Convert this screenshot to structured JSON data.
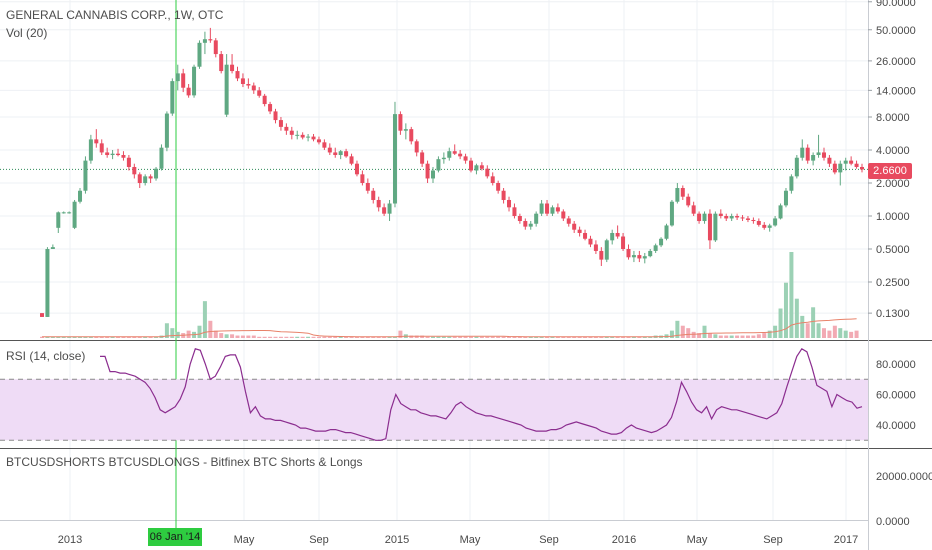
{
  "header": {
    "symbol_title": "GENERAL CANNABIS CORP., 1W, OTC",
    "volume_label": "Vol (20)",
    "rsi_label": "RSI (14, close)",
    "third_pane_label": "BTCUSDSHORTS BTCUSDLONGS - Bitfinex BTC Shorts & Longs"
  },
  "crosshair": {
    "date_label": "06 Jan '14"
  },
  "last_price": "2.6600",
  "colors": {
    "up": "#5fa882",
    "down": "#e84a5f",
    "volume_up": "#9cd1b5",
    "volume_down": "#f2aab3",
    "rsi_line": "#8b2d8f",
    "rsi_band": "#efdcf6",
    "crosshair": "#2ecc40",
    "last_price_line": "#2e8b57"
  },
  "chart_data": [
    {
      "type": "candlestick",
      "title": "GENERAL CANNABIS CORP., 1W, OTC",
      "scale": "log",
      "price_axis_ticks": [
        "90.0000",
        "50.0000",
        "26.0000",
        "14.0000",
        "8.0000",
        "4.0000",
        "2.0000",
        "1.0000",
        "0.5000",
        "0.2500",
        "0.1300"
      ],
      "x_axis_ticks": [
        "2013",
        "May",
        "Sep",
        "2015",
        "May",
        "Sep",
        "2016",
        "May",
        "Sep",
        "2017"
      ],
      "last": 2.66,
      "candles": [
        [
          0.13,
          0.13,
          0.12,
          0.12
        ],
        [
          0.12,
          0.52,
          0.12,
          0.5
        ],
        [
          0.5,
          0.55,
          0.5,
          0.52
        ],
        [
          0.78,
          1.1,
          0.7,
          1.08
        ],
        [
          1.08,
          1.1,
          1.05,
          1.08
        ],
        [
          1.08,
          1.1,
          1.05,
          1.08
        ],
        [
          0.78,
          1.4,
          0.76,
          1.35
        ],
        [
          1.35,
          1.8,
          1.3,
          1.7
        ],
        [
          1.7,
          3.5,
          1.6,
          3.2
        ],
        [
          3.2,
          5.5,
          3.0,
          5.0
        ],
        [
          5.0,
          6.2,
          4.2,
          4.6
        ],
        [
          4.6,
          5.0,
          3.6,
          3.8
        ],
        [
          3.8,
          4.2,
          3.4,
          3.6
        ],
        [
          3.6,
          4.0,
          3.3,
          3.7
        ],
        [
          3.7,
          4.1,
          3.5,
          3.6
        ],
        [
          3.6,
          3.9,
          3.2,
          3.4
        ],
        [
          3.4,
          3.6,
          2.6,
          2.8
        ],
        [
          2.8,
          3.0,
          2.2,
          2.4
        ],
        [
          2.4,
          2.5,
          1.8,
          2.0
        ],
        [
          2.0,
          2.4,
          1.9,
          2.3
        ],
        [
          2.3,
          2.4,
          2.0,
          2.2
        ],
        [
          2.2,
          2.8,
          2.1,
          2.7
        ],
        [
          2.7,
          4.5,
          2.6,
          4.2
        ],
        [
          4.2,
          9.0,
          3.9,
          8.6
        ],
        [
          8.6,
          18.0,
          8.2,
          17.0
        ],
        [
          17.0,
          24.0,
          14.0,
          20.0
        ],
        [
          20.0,
          22.0,
          13.5,
          14.8
        ],
        [
          14.8,
          16.0,
          12.0,
          12.6
        ],
        [
          12.6,
          24.0,
          12.0,
          23.0
        ],
        [
          23.0,
          40.0,
          22.0,
          38.0
        ],
        [
          38.0,
          48.0,
          30.0,
          41.0
        ],
        [
          41.0,
          52.0,
          38.0,
          40.0
        ],
        [
          40.0,
          42.0,
          28.0,
          30.0
        ],
        [
          30.0,
          32.0,
          20.0,
          21.0
        ],
        [
          8.4,
          30.0,
          8.0,
          24.0
        ],
        [
          24.0,
          30.0,
          20.0,
          21.0
        ],
        [
          21.0,
          23.0,
          17.0,
          18.0
        ],
        [
          18.0,
          20.0,
          15.0,
          16.0
        ],
        [
          16.0,
          18.0,
          14.5,
          15.5
        ],
        [
          15.5,
          16.5,
          13.0,
          14.0
        ],
        [
          14.0,
          15.0,
          12.0,
          12.5
        ],
        [
          12.5,
          13.0,
          10.0,
          10.5
        ],
        [
          10.5,
          11.0,
          8.5,
          9.0
        ],
        [
          9.0,
          9.5,
          7.0,
          7.5
        ],
        [
          7.5,
          8.0,
          6.0,
          6.5
        ],
        [
          6.5,
          7.0,
          5.5,
          6.0
        ],
        [
          6.0,
          6.5,
          5.0,
          5.5
        ],
        [
          5.5,
          6.0,
          5.0,
          5.5
        ],
        [
          5.5,
          5.8,
          5.0,
          5.2
        ],
        [
          5.2,
          5.6,
          4.8,
          5.3
        ],
        [
          5.3,
          5.6,
          4.8,
          5.0
        ],
        [
          5.0,
          5.3,
          4.5,
          4.7
        ],
        [
          4.7,
          5.0,
          4.0,
          4.2
        ],
        [
          4.2,
          4.6,
          3.6,
          3.8
        ],
        [
          3.8,
          4.2,
          3.4,
          3.6
        ],
        [
          3.6,
          4.0,
          3.3,
          3.9
        ],
        [
          3.9,
          4.1,
          3.4,
          3.5
        ],
        [
          3.5,
          3.7,
          2.9,
          3.0
        ],
        [
          3.0,
          3.2,
          2.3,
          2.4
        ],
        [
          2.4,
          2.6,
          1.9,
          2.0
        ],
        [
          2.0,
          2.2,
          1.6,
          1.7
        ],
        [
          1.7,
          1.8,
          1.3,
          1.4
        ],
        [
          1.4,
          1.5,
          1.1,
          1.2
        ],
        [
          1.2,
          1.3,
          1.0,
          1.05
        ],
        [
          1.05,
          1.4,
          0.9,
          1.3
        ],
        [
          1.3,
          11.0,
          1.2,
          8.5
        ],
        [
          8.5,
          9.0,
          5.5,
          6.0
        ],
        [
          6.0,
          7.0,
          5.0,
          6.2
        ],
        [
          6.2,
          6.5,
          4.5,
          4.8
        ],
        [
          4.8,
          5.0,
          3.5,
          3.8
        ],
        [
          3.8,
          4.0,
          2.8,
          3.0
        ],
        [
          3.0,
          3.2,
          2.0,
          2.2
        ],
        [
          2.2,
          2.8,
          2.0,
          2.6
        ],
        [
          2.6,
          3.5,
          2.5,
          3.3
        ],
        [
          3.3,
          3.8,
          3.0,
          3.4
        ],
        [
          3.4,
          4.2,
          3.2,
          3.9
        ],
        [
          3.9,
          4.5,
          3.6,
          3.7
        ],
        [
          3.7,
          4.0,
          3.3,
          3.5
        ],
        [
          3.5,
          3.7,
          3.0,
          3.2
        ],
        [
          3.2,
          3.4,
          2.5,
          2.6
        ],
        [
          2.6,
          3.0,
          2.4,
          2.9
        ],
        [
          2.9,
          3.1,
          2.6,
          2.7
        ],
        [
          2.7,
          2.9,
          2.2,
          2.3
        ],
        [
          2.3,
          2.5,
          1.9,
          2.0
        ],
        [
          2.0,
          2.1,
          1.6,
          1.7
        ],
        [
          1.7,
          1.8,
          1.3,
          1.4
        ],
        [
          1.4,
          1.5,
          1.1,
          1.2
        ],
        [
          1.2,
          1.3,
          0.95,
          1.0
        ],
        [
          1.0,
          1.05,
          0.85,
          0.9
        ],
        [
          0.9,
          0.95,
          0.75,
          0.8
        ],
        [
          0.8,
          0.9,
          0.75,
          0.85
        ],
        [
          0.85,
          1.1,
          0.8,
          1.05
        ],
        [
          1.05,
          1.4,
          1.0,
          1.3
        ],
        [
          1.3,
          1.4,
          1.0,
          1.05
        ],
        [
          1.05,
          1.25,
          1.0,
          1.2
        ],
        [
          1.2,
          1.3,
          1.05,
          1.1
        ],
        [
          1.1,
          1.15,
          0.9,
          0.95
        ],
        [
          0.95,
          1.0,
          0.8,
          0.85
        ],
        [
          0.85,
          0.9,
          0.7,
          0.75
        ],
        [
          0.75,
          0.8,
          0.65,
          0.7
        ],
        [
          0.7,
          0.75,
          0.6,
          0.62
        ],
        [
          0.62,
          0.66,
          0.52,
          0.55
        ],
        [
          0.55,
          0.6,
          0.45,
          0.48
        ],
        [
          0.48,
          0.52,
          0.35,
          0.4
        ],
        [
          0.4,
          0.62,
          0.38,
          0.6
        ],
        [
          0.6,
          0.75,
          0.55,
          0.7
        ],
        [
          0.7,
          0.82,
          0.62,
          0.65
        ],
        [
          0.65,
          0.7,
          0.48,
          0.5
        ],
        [
          0.5,
          0.55,
          0.4,
          0.42
        ],
        [
          0.42,
          0.48,
          0.38,
          0.44
        ],
        [
          0.44,
          0.48,
          0.38,
          0.41
        ],
        [
          0.41,
          0.46,
          0.37,
          0.43
        ],
        [
          0.43,
          0.5,
          0.42,
          0.48
        ],
        [
          0.48,
          0.56,
          0.46,
          0.54
        ],
        [
          0.54,
          0.64,
          0.52,
          0.62
        ],
        [
          0.62,
          0.85,
          0.6,
          0.82
        ],
        [
          0.82,
          1.4,
          0.8,
          1.35
        ],
        [
          1.35,
          2.0,
          1.3,
          1.8
        ],
        [
          1.8,
          1.9,
          1.4,
          1.5
        ],
        [
          1.5,
          1.6,
          1.2,
          1.25
        ],
        [
          1.25,
          1.35,
          1.0,
          1.05
        ],
        [
          1.05,
          1.1,
          0.85,
          0.9
        ],
        [
          0.9,
          1.1,
          0.85,
          1.05
        ],
        [
          1.05,
          1.15,
          0.5,
          0.6
        ],
        [
          0.6,
          1.1,
          0.58,
          1.05
        ],
        [
          1.05,
          1.15,
          0.95,
          1.0
        ],
        [
          1.0,
          1.05,
          0.9,
          0.95
        ],
        [
          0.95,
          1.05,
          0.9,
          1.0
        ],
        [
          1.0,
          1.05,
          0.92,
          0.97
        ],
        [
          0.97,
          1.02,
          0.9,
          0.95
        ],
        [
          0.95,
          1.0,
          0.88,
          0.92
        ],
        [
          0.92,
          0.97,
          0.85,
          0.9
        ],
        [
          0.9,
          0.95,
          0.8,
          0.83
        ],
        [
          0.83,
          0.88,
          0.75,
          0.78
        ],
        [
          0.78,
          0.85,
          0.72,
          0.82
        ],
        [
          0.82,
          1.0,
          0.8,
          0.95
        ],
        [
          0.95,
          1.3,
          0.93,
          1.25
        ],
        [
          1.25,
          1.8,
          1.2,
          1.7
        ],
        [
          1.7,
          2.4,
          1.6,
          2.3
        ],
        [
          2.3,
          3.6,
          2.2,
          3.4
        ],
        [
          3.4,
          5.0,
          3.2,
          4.2
        ],
        [
          4.2,
          4.5,
          3.0,
          3.2
        ],
        [
          3.2,
          3.8,
          2.9,
          3.6
        ],
        [
          3.6,
          5.5,
          3.4,
          3.8
        ],
        [
          3.8,
          4.2,
          3.2,
          3.4
        ],
        [
          3.4,
          3.6,
          2.8,
          3.0
        ],
        [
          3.0,
          3.2,
          2.4,
          2.5
        ],
        [
          2.5,
          3.2,
          1.9,
          3.0
        ],
        [
          3.0,
          3.4,
          2.6,
          3.2
        ],
        [
          3.2,
          3.5,
          2.9,
          3.0
        ],
        [
          3.0,
          3.2,
          2.7,
          2.8
        ],
        [
          2.8,
          3.0,
          2.5,
          2.66
        ]
      ]
    },
    {
      "type": "bar",
      "title": "Vol (20)",
      "values": [
        1,
        1,
        1,
        1,
        1,
        1,
        1,
        1,
        1,
        1,
        1,
        1,
        1,
        1,
        1,
        1,
        1,
        1,
        1,
        1,
        1,
        1,
        2,
        12,
        8,
        5,
        4,
        6,
        5,
        10,
        30,
        14,
        6,
        4,
        3,
        3,
        2,
        2,
        2,
        2,
        1,
        1,
        1,
        1,
        1,
        1,
        1,
        1,
        1,
        1,
        1,
        1,
        1,
        1,
        1,
        1,
        1,
        1,
        1,
        1,
        1,
        1,
        1,
        1,
        1,
        1,
        6,
        3,
        2,
        2,
        2,
        1,
        1,
        1,
        1,
        1,
        1,
        1,
        1,
        1,
        1,
        1,
        1,
        1,
        1,
        1,
        1,
        1,
        1,
        1,
        1,
        1,
        1,
        1,
        1,
        1,
        1,
        1,
        1,
        1,
        1,
        1,
        1,
        1,
        1,
        1,
        1,
        1,
        1,
        1,
        1,
        1,
        1,
        2,
        2,
        3,
        6,
        14,
        10,
        8,
        5,
        4,
        10,
        4,
        3,
        2,
        2,
        2,
        2,
        2,
        2,
        2,
        3,
        4,
        6,
        10,
        24,
        45,
        70,
        32,
        18,
        12,
        25,
        12,
        8,
        6,
        10,
        8,
        6,
        5,
        6
      ]
    },
    {
      "type": "line",
      "title": "RSI (14, close)",
      "yaxis_ticks": [
        "80.0000",
        "60.0000",
        "40.0000"
      ],
      "band": [
        30,
        70
      ],
      "values": [
        85,
        85,
        75,
        75,
        74,
        74,
        73,
        72,
        70,
        68,
        64,
        58,
        50,
        48,
        50,
        52,
        57,
        65,
        80,
        90,
        89,
        80,
        70,
        72,
        78,
        85,
        86,
        86,
        78,
        62,
        48,
        52,
        46,
        44,
        44,
        43,
        43,
        42,
        41,
        40,
        38,
        38,
        37,
        36,
        36,
        36,
        37,
        37,
        36,
        35,
        35,
        34,
        33,
        32,
        31,
        30,
        30,
        31,
        50,
        60,
        54,
        52,
        50,
        50,
        48,
        47,
        46,
        46,
        45,
        44,
        48,
        53,
        55,
        52,
        50,
        48,
        47,
        46,
        46,
        45,
        44,
        43,
        42,
        41,
        40,
        38,
        37,
        36,
        36,
        36,
        37,
        37,
        38,
        40,
        41,
        42,
        41,
        40,
        39,
        38,
        36,
        35,
        34,
        34,
        35,
        38,
        40,
        38,
        37,
        36,
        35,
        36,
        38,
        40,
        45,
        55,
        68,
        62,
        55,
        50,
        48,
        52,
        44,
        50,
        52,
        51,
        50,
        50,
        49,
        48,
        47,
        46,
        45,
        44,
        46,
        48,
        54,
        65,
        75,
        85,
        90,
        88,
        78,
        66,
        64,
        62,
        52,
        60,
        58,
        56,
        55,
        51,
        52
      ]
    },
    {
      "type": "line",
      "title": "BTCUSDSHORTS BTCUSDLONGS - Bitfinex BTC Shorts & Longs",
      "yaxis_ticks": [
        "20000.0000",
        "0.0000"
      ],
      "values": []
    }
  ]
}
